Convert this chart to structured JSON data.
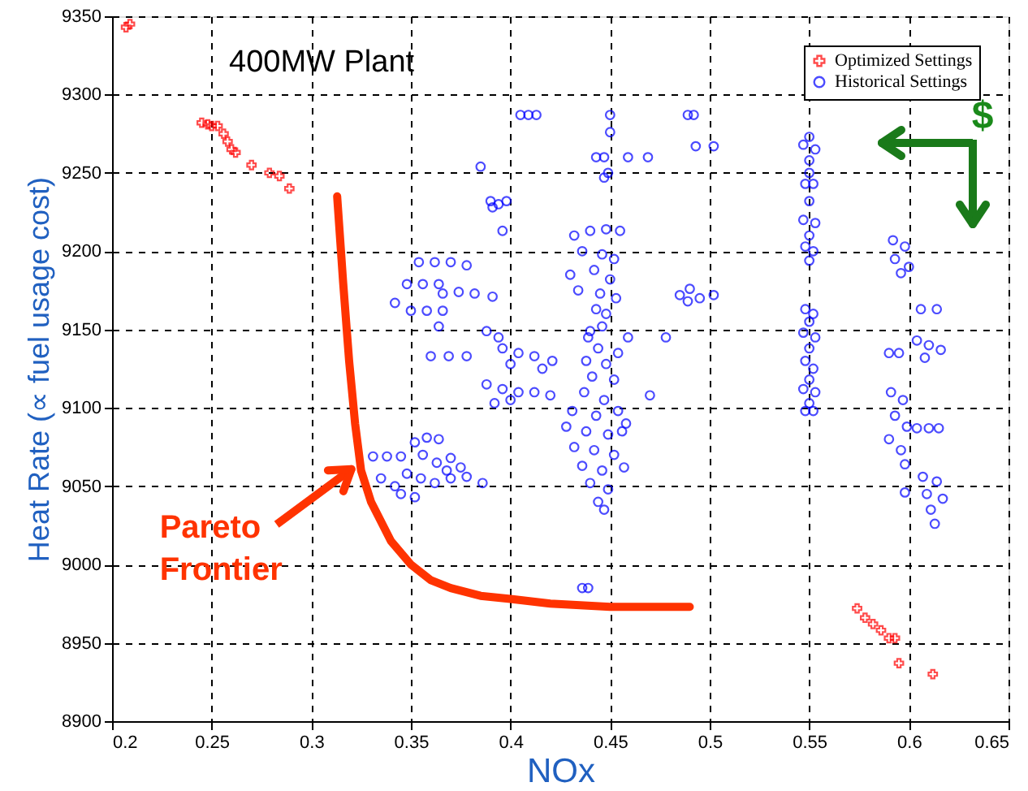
{
  "chart_data": {
    "type": "scatter",
    "title": "400MW Plant",
    "xlabel": "NOx",
    "ylabel": "Heat Rate (∝ fuel usage cost)",
    "xlim": [
      0.2,
      0.65
    ],
    "xticks": [
      0.2,
      0.25,
      0.3,
      0.35,
      0.4,
      0.45,
      0.5,
      0.55,
      0.6,
      0.65
    ],
    "ylim": [
      8900,
      9350
    ],
    "yticks": [
      8900,
      8950,
      9000,
      9050,
      9100,
      9150,
      9200,
      9250,
      9300,
      9350
    ],
    "grid": true,
    "legend": "top right",
    "annotations": [
      {
        "text": "Pareto Frontier",
        "x": 0.325,
        "y": 9065
      },
      "$"
    ],
    "series": [
      {
        "name": "Optimized Settings",
        "color": "#ff0000",
        "marker": "cross",
        "x": [
          0.207,
          0.209,
          0.245,
          0.248,
          0.25,
          0.253,
          0.256,
          0.258,
          0.26,
          0.262,
          0.27,
          0.279,
          0.284,
          0.289,
          0.574,
          0.578,
          0.582,
          0.586,
          0.59,
          0.593,
          0.595,
          0.612
        ],
        "values": [
          9343,
          9345,
          9282,
          9281,
          9280,
          9280,
          9275,
          9270,
          9265,
          9263,
          9255,
          9250,
          9248,
          9240,
          8972,
          8966,
          8962,
          8958,
          8953,
          8953,
          8937,
          8930
        ]
      },
      {
        "name": "Historical Settings",
        "color": "#0000ff",
        "marker": "circle",
        "x": [
          0.405,
          0.409,
          0.413,
          0.45,
          0.489,
          0.492,
          0.45,
          0.385,
          0.39,
          0.394,
          0.398,
          0.396,
          0.391,
          0.443,
          0.447,
          0.459,
          0.469,
          0.449,
          0.447,
          0.493,
          0.502,
          0.55,
          0.547,
          0.553,
          0.55,
          0.55,
          0.548,
          0.552,
          0.55,
          0.547,
          0.553,
          0.55,
          0.548,
          0.552,
          0.55,
          0.548,
          0.552,
          0.55,
          0.547,
          0.553,
          0.55,
          0.548,
          0.552,
          0.55,
          0.547,
          0.553,
          0.55,
          0.548,
          0.552,
          0.432,
          0.44,
          0.448,
          0.455,
          0.436,
          0.446,
          0.452,
          0.43,
          0.442,
          0.45,
          0.434,
          0.445,
          0.453,
          0.443,
          0.448,
          0.44,
          0.446,
          0.444,
          0.438,
          0.448,
          0.441,
          0.452,
          0.437,
          0.447,
          0.431,
          0.443,
          0.454,
          0.428,
          0.438,
          0.449,
          0.432,
          0.442,
          0.452,
          0.436,
          0.446,
          0.44,
          0.449,
          0.444,
          0.447,
          0.456,
          0.458,
          0.457,
          0.439,
          0.459,
          0.478,
          0.454,
          0.592,
          0.598,
          0.593,
          0.6,
          0.596,
          0.606,
          0.614,
          0.59,
          0.595,
          0.604,
          0.61,
          0.616,
          0.608,
          0.591,
          0.597,
          0.593,
          0.599,
          0.59,
          0.596,
          0.598,
          0.604,
          0.61,
          0.615,
          0.607,
          0.614,
          0.609,
          0.617,
          0.611,
          0.613,
          0.598,
          0.485,
          0.49,
          0.495,
          0.489,
          0.502,
          0.354,
          0.362,
          0.37,
          0.378,
          0.348,
          0.356,
          0.364,
          0.366,
          0.374,
          0.382,
          0.391,
          0.342,
          0.35,
          0.358,
          0.366,
          0.364,
          0.36,
          0.369,
          0.378,
          0.396,
          0.404,
          0.412,
          0.421,
          0.388,
          0.394,
          0.4,
          0.416,
          0.388,
          0.396,
          0.404,
          0.412,
          0.42,
          0.392,
          0.4,
          0.47,
          0.331,
          0.338,
          0.345,
          0.352,
          0.358,
          0.364,
          0.356,
          0.363,
          0.37,
          0.348,
          0.355,
          0.362,
          0.37,
          0.378,
          0.386,
          0.335,
          0.342,
          0.345,
          0.352,
          0.368,
          0.375,
          0.436,
          0.439
        ],
        "values": [
          9287,
          9287,
          9287,
          9287,
          9287,
          9287,
          9276,
          9254,
          9232,
          9230,
          9232,
          9213,
          9228,
          9260,
          9260,
          9260,
          9260,
          9250,
          9247,
          9267,
          9267,
          9273,
          9268,
          9265,
          9258,
          9250,
          9243,
          9243,
          9232,
          9220,
          9218,
          9210,
          9203,
          9200,
          9194,
          9163,
          9160,
          9155,
          9148,
          9145,
          9138,
          9130,
          9125,
          9118,
          9112,
          9110,
          9103,
          9098,
          9098,
          9210,
          9213,
          9214,
          9213,
          9200,
          9198,
          9195,
          9185,
          9188,
          9182,
          9175,
          9173,
          9170,
          9163,
          9160,
          9149,
          9152,
          9138,
          9130,
          9128,
          9120,
          9118,
          9110,
          9105,
          9098,
          9095,
          9098,
          9088,
          9085,
          9083,
          9075,
          9073,
          9070,
          9063,
          9060,
          9052,
          9048,
          9040,
          9035,
          9085,
          9090,
          9062,
          9145,
          9145,
          9145,
          9135,
          9207,
          9203,
          9195,
          9190,
          9186,
          9163,
          9163,
          9135,
          9135,
          9143,
          9140,
          9137,
          9132,
          9110,
          9105,
          9095,
          9088,
          9080,
          9073,
          9064,
          9087,
          9087,
          9087,
          9056,
          9053,
          9045,
          9042,
          9035,
          9026,
          9046,
          9172,
          9176,
          9170,
          9168,
          9172,
          9193,
          9193,
          9193,
          9191,
          9179,
          9179,
          9179,
          9173,
          9174,
          9173,
          9171,
          9167,
          9162,
          9162,
          9162,
          9152,
          9133,
          9133,
          9133,
          9138,
          9135,
          9133,
          9130,
          9149,
          9145,
          9128,
          9125,
          9115,
          9112,
          9110,
          9110,
          9108,
          9103,
          9105,
          9108,
          9069,
          9069,
          9069,
          9078,
          9081,
          9080,
          9070,
          9065,
          9068,
          9058,
          9055,
          9052,
          9055,
          9056,
          9052,
          9055,
          9050,
          9045,
          9043,
          9060,
          9062,
          8985,
          8985
        ]
      },
      {
        "type": "line",
        "color": "#ff3300",
        "marker": "none",
        "x": [
          0.313,
          0.316,
          0.319,
          0.322,
          0.325,
          0.33,
          0.34,
          0.35,
          0.36,
          0.37,
          0.385,
          0.4,
          0.42,
          0.45,
          0.49
        ],
        "values": [
          9235,
          9180,
          9130,
          9090,
          9060,
          9040,
          9015,
          9000,
          8990,
          8985,
          8980,
          8978,
          8975,
          8973,
          8973
        ]
      }
    ]
  }
}
